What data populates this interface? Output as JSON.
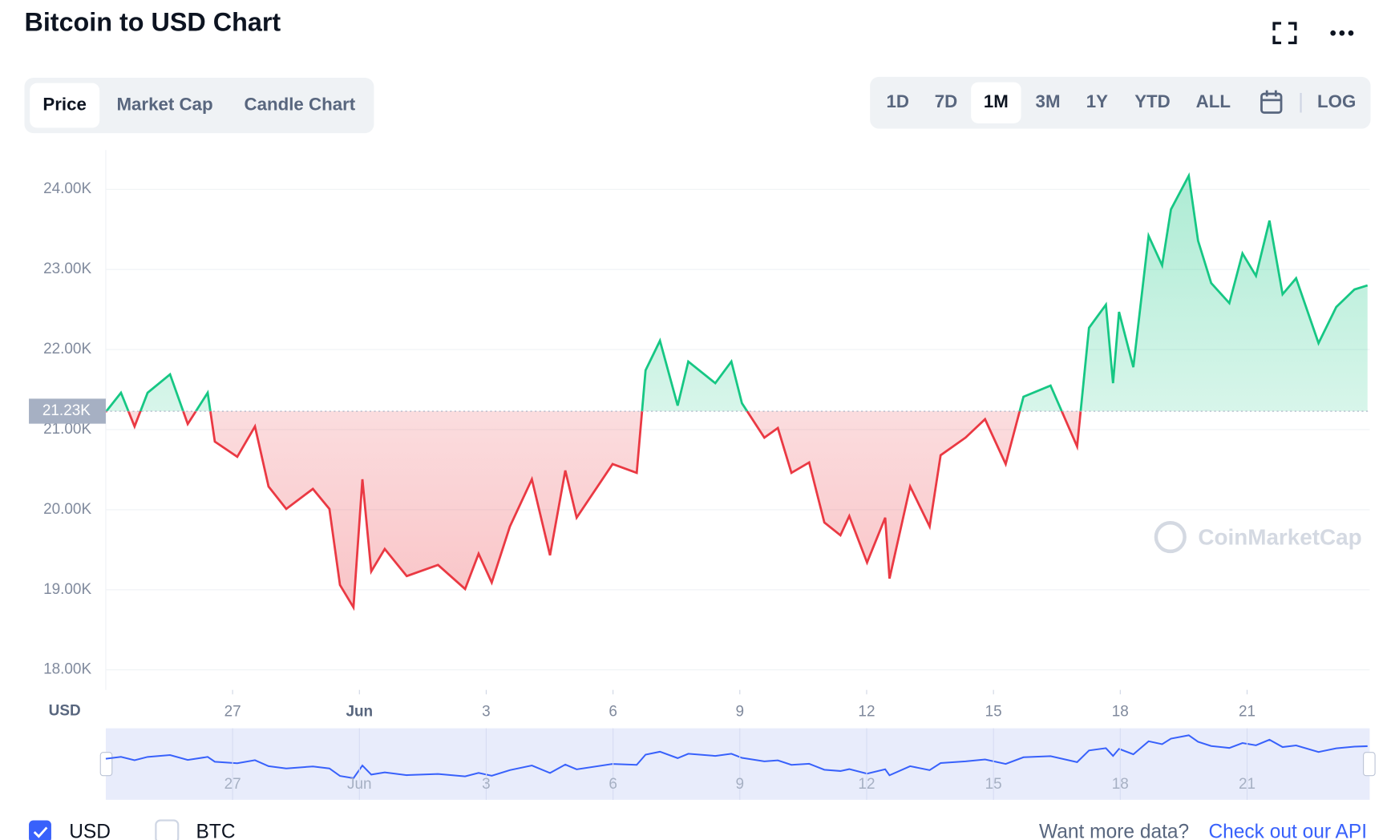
{
  "header": {
    "title": "Bitcoin to USD Chart"
  },
  "tabs": [
    "Price",
    "Market Cap",
    "Candle Chart"
  ],
  "ranges": [
    "1D",
    "7D",
    "1M",
    "3M",
    "1Y",
    "YTD",
    "ALL"
  ],
  "log_button": "LOG",
  "chart_data": {
    "type": "line",
    "y_axis_label": "USD",
    "watermark": "CoinMarketCap",
    "up_color": "#16c784",
    "down_color": "#ea3943",
    "current_price": {
      "value": 21230,
      "label": "21.23K"
    },
    "x": [
      0,
      0.36,
      0.68,
      0.99,
      1.52,
      1.94,
      2.41,
      2.58,
      3.11,
      3.53,
      3.85,
      4.27,
      4.9,
      5.29,
      5.54,
      5.86,
      6.07,
      6.28,
      6.6,
      7.12,
      7.86,
      8.5,
      8.82,
      9.13,
      9.56,
      10.08,
      10.51,
      10.87,
      11.14,
      11.99,
      12.56,
      12.77,
      13.11,
      13.53,
      13.78,
      14.42,
      14.8,
      15.05,
      15.58,
      15.9,
      16.22,
      16.64,
      17.0,
      17.38,
      17.59,
      18.01,
      18.44,
      18.54,
      19.03,
      19.49,
      19.75,
      20.34,
      20.8,
      21.29,
      21.71,
      22.35,
      22.98,
      23.26,
      23.66,
      23.83,
      23.97,
      24.31,
      24.67,
      24.99,
      25.2,
      25.62,
      25.84,
      26.15,
      26.58,
      26.89,
      27.21,
      27.53,
      27.84,
      28.16,
      28.69,
      29.11,
      29.54,
      29.85
    ],
    "values": [
      21220,
      21460,
      21040,
      21460,
      21690,
      21070,
      21460,
      20850,
      20660,
      21040,
      20290,
      20010,
      20260,
      20010,
      19060,
      18780,
      20380,
      19230,
      19510,
      19170,
      19310,
      19010,
      19450,
      19090,
      19790,
      20380,
      19430,
      20490,
      19900,
      20570,
      20460,
      21740,
      22110,
      21300,
      21850,
      21580,
      21850,
      21330,
      20900,
      21020,
      20460,
      20590,
      19840,
      19680,
      19920,
      19340,
      19900,
      19140,
      20290,
      19790,
      20680,
      20900,
      21130,
      20570,
      21410,
      21550,
      20790,
      22270,
      22560,
      21580,
      22470,
      21780,
      23420,
      23050,
      23750,
      24170,
      23360,
      22830,
      22580,
      23200,
      22920,
      23610,
      22690,
      22890,
      22080,
      22530,
      22750,
      22800
    ],
    "xlim": [
      0,
      29.9
    ],
    "xticks": [
      {
        "value": 3,
        "label": "27"
      },
      {
        "value": 6,
        "label": "Jun"
      },
      {
        "value": 9,
        "label": "3"
      },
      {
        "value": 12,
        "label": "6"
      },
      {
        "value": 15,
        "label": "9"
      },
      {
        "value": 18,
        "label": "12"
      },
      {
        "value": 21,
        "label": "15"
      },
      {
        "value": 24,
        "label": "18"
      },
      {
        "value": 27,
        "label": "21"
      }
    ],
    "ylim": [
      17750,
      24490
    ],
    "yticks": [
      {
        "value": 18000,
        "label": "18.00K"
      },
      {
        "value": 19000,
        "label": "19.00K"
      },
      {
        "value": 20000,
        "label": "20.00K"
      },
      {
        "value": 21000,
        "label": "21.00K"
      },
      {
        "value": 22000,
        "label": "22.00K"
      },
      {
        "value": 23000,
        "label": "23.00K"
      },
      {
        "value": 24000,
        "label": "24.00K"
      }
    ],
    "grid": true
  },
  "footer": {
    "currency_options": [
      "USD",
      "BTC"
    ],
    "more_data": "Want more data?",
    "api_link": "Check out our API"
  }
}
